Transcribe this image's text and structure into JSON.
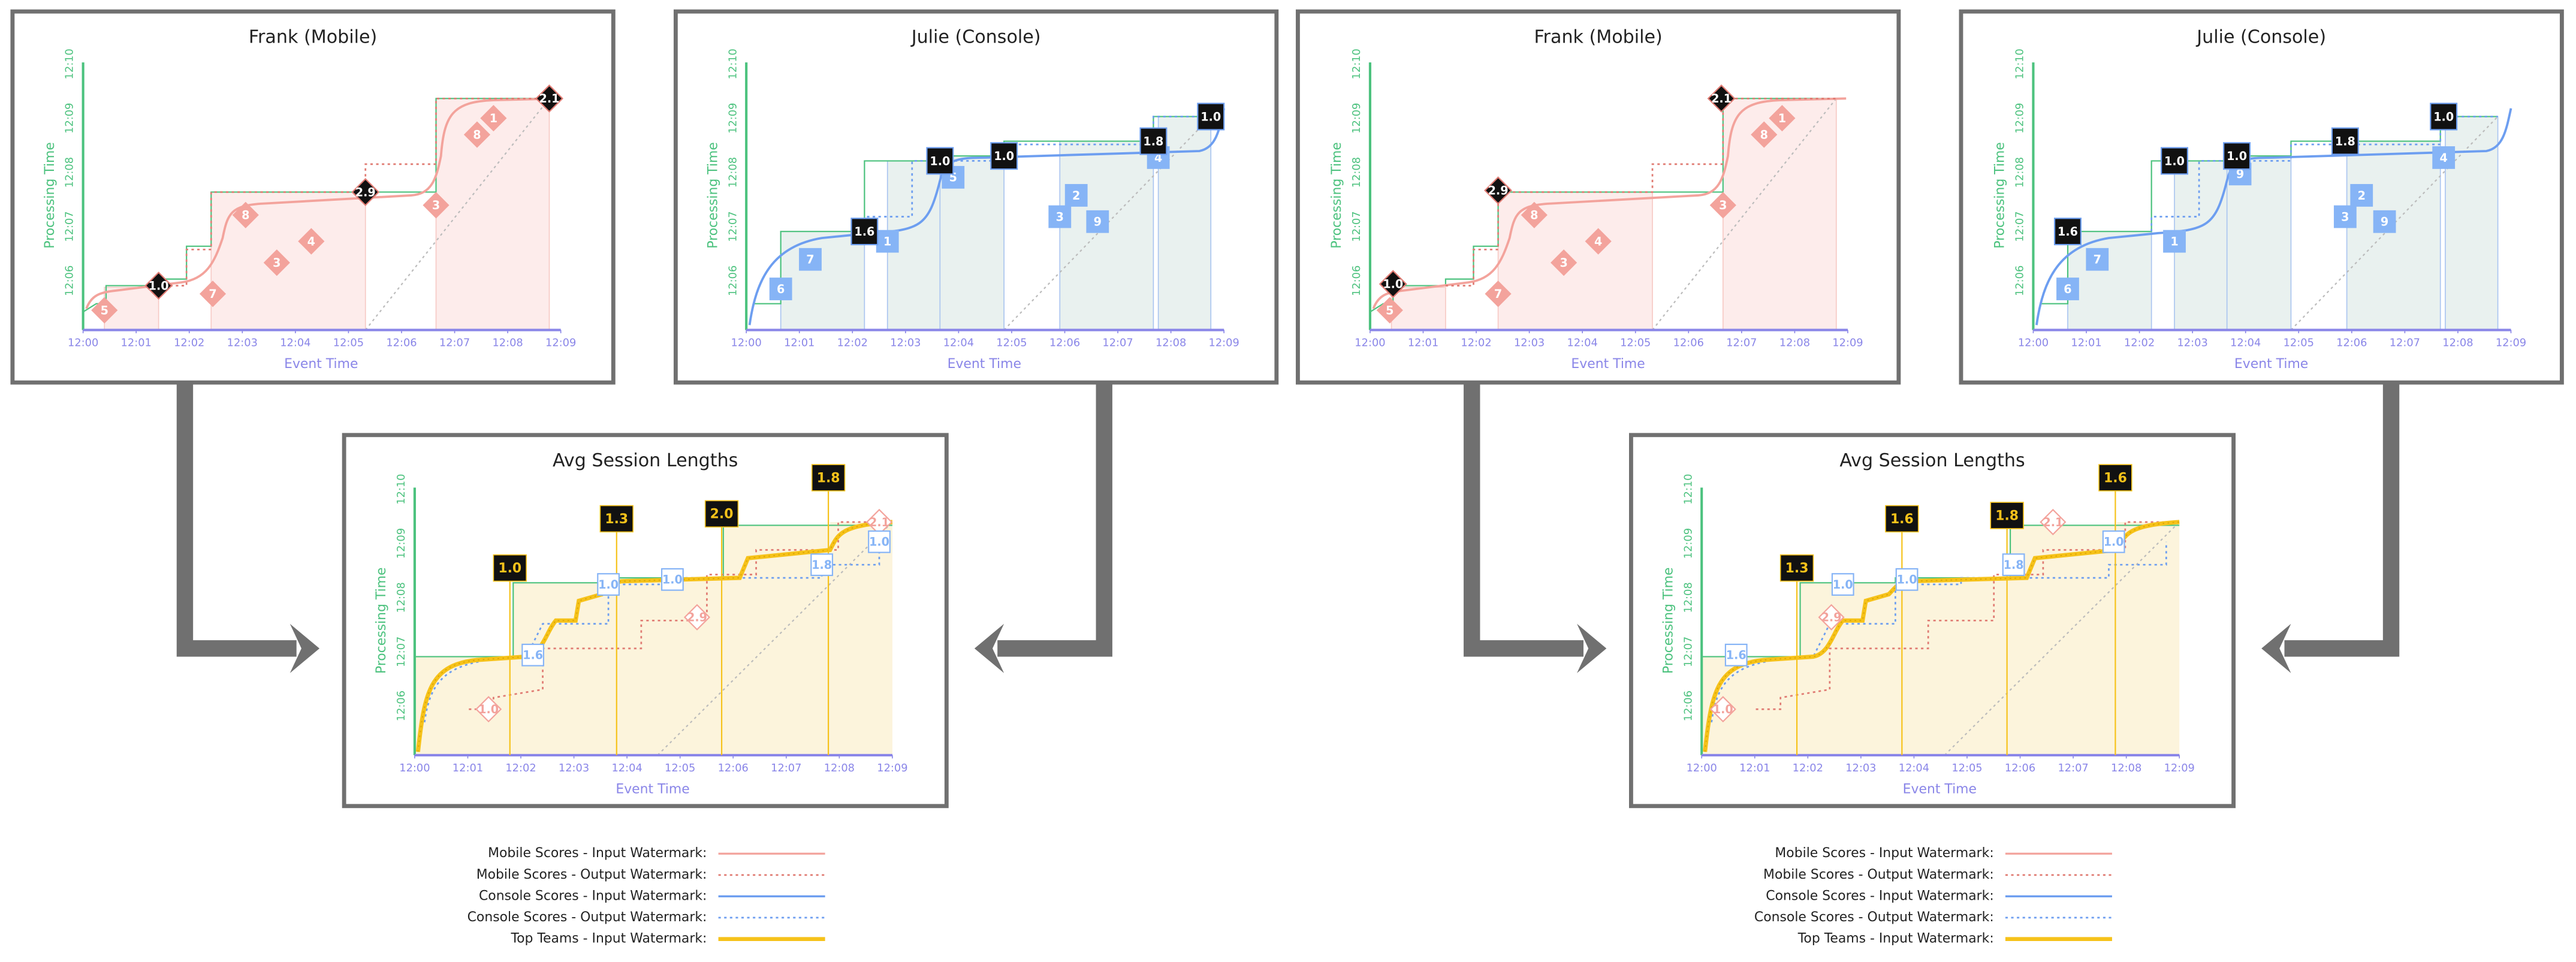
{
  "panels": [
    {
      "title": "Frank (Mobile)",
      "x_label": "Event Time",
      "y_label": "Processing Time",
      "x_ticks": [
        "12:00",
        "12:01",
        "12:02",
        "12:03",
        "12:04",
        "12:05",
        "12:06",
        "12:07",
        "12:08",
        "12:09"
      ],
      "y_ticks": [
        "12:06",
        "12:07",
        "12:08",
        "12:09",
        "12:10"
      ],
      "badges": [
        "5",
        "7",
        "8",
        "3",
        "4",
        "3",
        "8",
        "1",
        "1.0",
        "2.9",
        "2.1"
      ]
    },
    {
      "title": "Julie (Console)",
      "x_label": "Event Time",
      "y_label": "Processing Time",
      "x_ticks": [
        "12:00",
        "12:01",
        "12:02",
        "12:03",
        "12:04",
        "12:05",
        "12:06",
        "12:07",
        "12:08",
        "12:09"
      ],
      "y_ticks": [
        "12:06",
        "12:07",
        "12:08",
        "12:09",
        "12:10"
      ],
      "badges": [
        "6",
        "7",
        "1",
        "5",
        "3",
        "2",
        "9",
        "4",
        "1.6",
        "1.0",
        "1.0",
        "1.8",
        "1.0"
      ]
    },
    {
      "title": "Frank (Mobile)",
      "x_label": "Event Time",
      "y_label": "Processing Time",
      "x_ticks": [
        "12:00",
        "12:01",
        "12:02",
        "12:03",
        "12:04",
        "12:05",
        "12:06",
        "12:07",
        "12:08",
        "12:09"
      ],
      "y_ticks": [
        "12:06",
        "12:07",
        "12:08",
        "12:09",
        "12:10"
      ],
      "badges": [
        "5",
        "7",
        "8",
        "3",
        "4",
        "3",
        "8",
        "1",
        "1.0",
        "2.9",
        "2.1"
      ]
    },
    {
      "title": "Julie (Console)",
      "x_label": "Event Time",
      "y_label": "Processing Time",
      "x_ticks": [
        "12:00",
        "12:01",
        "12:02",
        "12:03",
        "12:04",
        "12:05",
        "12:06",
        "12:07",
        "12:08",
        "12:09"
      ],
      "y_ticks": [
        "12:06",
        "12:07",
        "12:08",
        "12:09",
        "12:10"
      ],
      "badges": [
        "6",
        "7",
        "1",
        "9",
        "3",
        "2",
        "9",
        "4",
        "1.6",
        "1.0",
        "1.0",
        "1.8",
        "1.0"
      ]
    },
    {
      "title": "Avg Session Lengths",
      "x_label": "Event Time",
      "y_label": "Processing Time",
      "x_ticks": [
        "12:00",
        "12:01",
        "12:02",
        "12:03",
        "12:04",
        "12:05",
        "12:06",
        "12:07",
        "12:08",
        "12:09"
      ],
      "y_ticks": [
        "12:06",
        "12:07",
        "12:08",
        "12:09",
        "12:10"
      ],
      "badges": [
        "1.0",
        "1.3",
        "2.0",
        "1.8",
        "1.0",
        "2.9",
        "2.1",
        "1.6",
        "1.0",
        "1.0",
        "1.8",
        "1.0"
      ]
    },
    {
      "title": "Avg Session Lengths",
      "x_label": "Event Time",
      "y_label": "Processing Time",
      "x_ticks": [
        "12:00",
        "12:01",
        "12:02",
        "12:03",
        "12:04",
        "12:05",
        "12:06",
        "12:07",
        "12:08",
        "12:09"
      ],
      "y_ticks": [
        "12:06",
        "12:07",
        "12:08",
        "12:09",
        "12:10"
      ],
      "badges": [
        "1.3",
        "1.6",
        "1.8",
        "1.6",
        "1.0",
        "2.9",
        "2.1",
        "1.6",
        "1.0",
        "1.0",
        "1.8",
        "1.0"
      ]
    }
  ],
  "legends": [
    [
      "Mobile Scores - Input Watermark:",
      "Mobile Scores - Output Watermark:",
      "Console Scores - Input Watermark:",
      "Console Scores - Output Watermark:",
      "Top Teams - Input Watermark:"
    ],
    [
      "Mobile Scores - Input Watermark:",
      "Mobile Scores - Output Watermark:",
      "Console Scores - Input Watermark:",
      "Console Scores - Output Watermark:",
      "Top Teams - Input Watermark:"
    ]
  ]
}
